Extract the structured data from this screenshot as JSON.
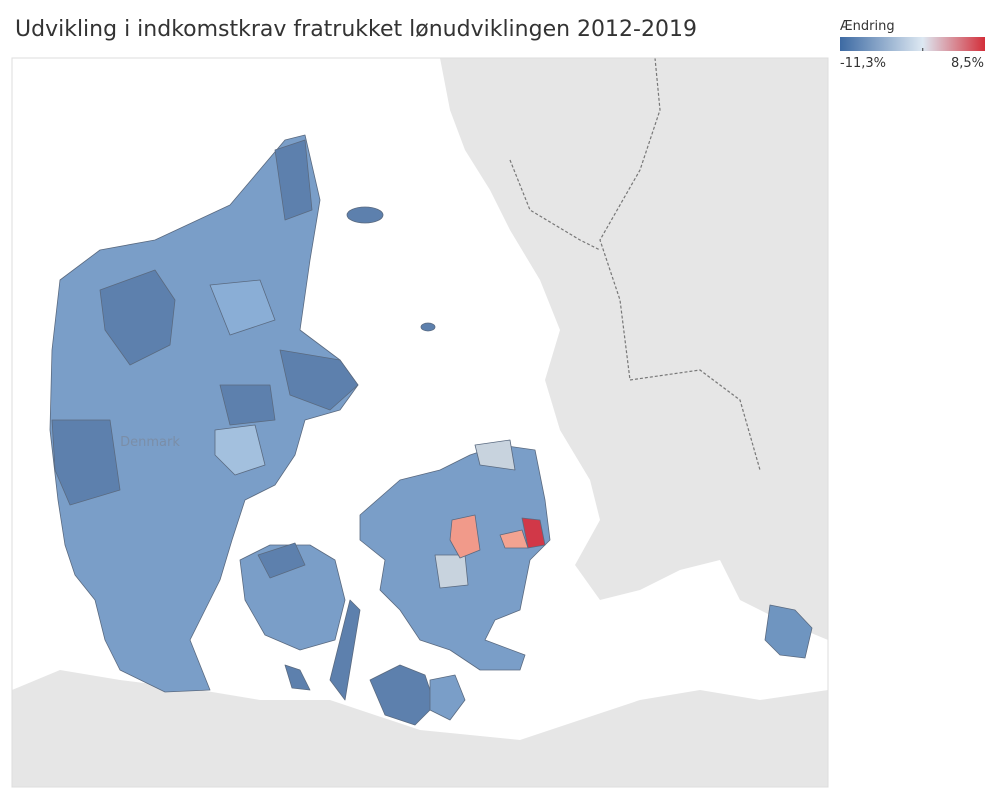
{
  "header": {
    "title": "Udvikling i indkomstkrav fratrukket lønudviklingen 2012-2019"
  },
  "legend": {
    "title": "Ændring",
    "min": {
      "value": -11.3,
      "label": "-11,3%"
    },
    "max": {
      "value": 8.5,
      "label": "8,5%"
    }
  },
  "map": {
    "country_label": "Denmark"
  }
}
